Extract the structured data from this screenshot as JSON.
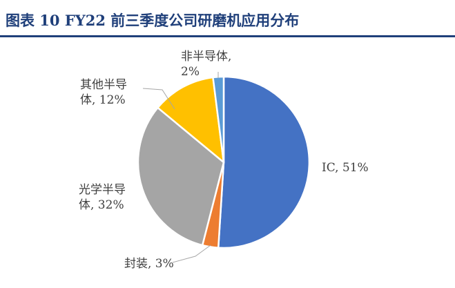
{
  "figure": {
    "title": "图表 10   FY22 前三季度公司研磨机应用分布"
  },
  "colors": {
    "title": "#1f3f7a",
    "rule": "#1f3f7a",
    "label": "#404040",
    "leader": "#a6a6a6"
  },
  "chart_data": {
    "type": "pie",
    "title": "",
    "slices": [
      {
        "name": "IC",
        "value": 51,
        "color": "#4472c4",
        "label_lines": [
          "IC, 51%"
        ]
      },
      {
        "name": "封装",
        "value": 3,
        "color": "#ed7d31",
        "label_lines": [
          "封装, 3%"
        ]
      },
      {
        "name": "光学半导体",
        "value": 32,
        "color": "#a5a5a5",
        "label_lines": [
          "光学半导",
          "体, 32%"
        ]
      },
      {
        "name": "其他半导体",
        "value": 12,
        "color": "#ffc000",
        "label_lines": [
          "其他半导",
          "体, 12%"
        ]
      },
      {
        "name": "非半导体",
        "value": 2,
        "color": "#5b9bd5",
        "label_lines": [
          "非半导体,",
          "2%"
        ]
      }
    ],
    "start_angle": "12 o'clock",
    "direction": "clockwise",
    "legend": "none",
    "data_labels": "outside, category and percent"
  }
}
